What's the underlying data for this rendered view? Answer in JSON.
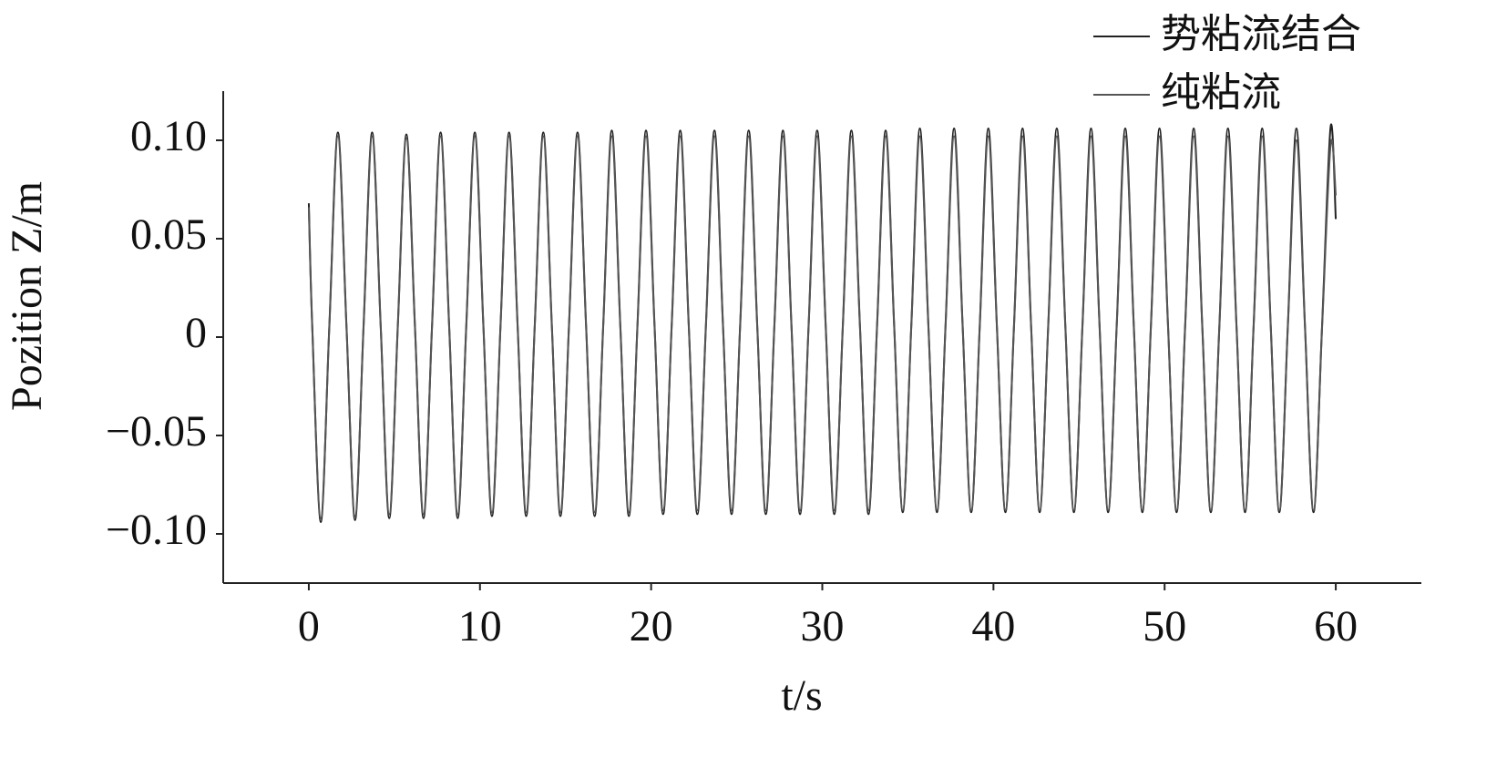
{
  "chart_data": {
    "type": "line",
    "xlabel": "t/s",
    "ylabel": "Pozition Z/m",
    "x": [
      0,
      0.2,
      0.7,
      1.2,
      1.7,
      2.2,
      2.7,
      3.2,
      3.7,
      4.2,
      4.7,
      5.2,
      5.7,
      6.2,
      6.7,
      7.2,
      7.7,
      8.2,
      8.7,
      9.2,
      9.7,
      10.2,
      10.7,
      11.2,
      11.7,
      12.2,
      12.7,
      13.2,
      13.7,
      14.2,
      14.7,
      15.2,
      15.7,
      16.2,
      16.7,
      17.2,
      17.7,
      18.2,
      18.7,
      19.2,
      19.7,
      20.2,
      20.7,
      21.2,
      21.7,
      22.2,
      22.7,
      23.2,
      23.7,
      24.2,
      24.7,
      25.2,
      25.7,
      26.2,
      26.7,
      27.2,
      27.7,
      28.2,
      28.7,
      29.2,
      29.7,
      30.2,
      30.7,
      31.2,
      31.7,
      32.2,
      32.7,
      33.2,
      33.7,
      34.2,
      34.7,
      35.2,
      35.7,
      36.2,
      36.7,
      37.2,
      37.7,
      38.2,
      38.7,
      39.2,
      39.7,
      40.2,
      40.7,
      41.2,
      41.7,
      42.2,
      42.7,
      43.2,
      43.7,
      44.2,
      44.7,
      45.2,
      45.7,
      46.2,
      46.7,
      47.2,
      47.7,
      48.2,
      48.7,
      49.2,
      49.7,
      50.2,
      50.7,
      51.2,
      51.7,
      52.2,
      52.7,
      53.2,
      53.7,
      54.2,
      54.7,
      55.2,
      55.7,
      56.2,
      56.7,
      57.2,
      57.7,
      58.2,
      58.7,
      59.2,
      59.7,
      60
    ],
    "series": [
      {
        "name": "势粘流结合",
        "color": "#222222",
        "values": [
          0.068,
          0.006,
          -0.094,
          0.006,
          0.104,
          0.006,
          -0.093,
          0.006,
          0.104,
          0.006,
          -0.092,
          0.006,
          0.103,
          0.006,
          -0.092,
          0.006,
          0.104,
          0.006,
          -0.092,
          0.006,
          0.104,
          0.006,
          -0.091,
          0.006,
          0.104,
          0.006,
          -0.091,
          0.006,
          0.104,
          0.006,
          -0.091,
          0.006,
          0.104,
          0.006,
          -0.091,
          0.006,
          0.105,
          0.006,
          -0.091,
          0.006,
          0.105,
          0.006,
          -0.09,
          0.006,
          0.105,
          0.006,
          -0.09,
          0.006,
          0.105,
          0.006,
          -0.09,
          0.006,
          0.105,
          0.006,
          -0.09,
          0.006,
          0.105,
          0.006,
          -0.09,
          0.006,
          0.105,
          0.006,
          -0.09,
          0.006,
          0.105,
          0.006,
          -0.09,
          0.006,
          0.105,
          0.006,
          -0.089,
          0.006,
          0.106,
          0.006,
          -0.089,
          0.006,
          0.106,
          0.006,
          -0.089,
          0.006,
          0.106,
          0.006,
          -0.089,
          0.006,
          0.106,
          0.006,
          -0.089,
          0.006,
          0.106,
          0.006,
          -0.089,
          0.006,
          0.106,
          0.006,
          -0.089,
          0.006,
          0.106,
          0.006,
          -0.089,
          0.006,
          0.106,
          0.006,
          -0.089,
          0.006,
          0.106,
          0.006,
          -0.089,
          0.006,
          0.106,
          0.006,
          -0.089,
          0.006,
          0.106,
          0.006,
          -0.089,
          0.006,
          0.106,
          0.006,
          -0.089,
          0.006,
          0.107,
          0.06
        ]
      },
      {
        "name": "纯粘流",
        "color": "#555555",
        "values": [
          0.066,
          0.005,
          -0.092,
          0.005,
          0.102,
          0.005,
          -0.091,
          0.005,
          0.102,
          0.005,
          -0.09,
          0.005,
          0.101,
          0.005,
          -0.09,
          0.005,
          0.102,
          0.005,
          -0.09,
          0.005,
          0.102,
          0.005,
          -0.089,
          0.005,
          0.102,
          0.005,
          -0.089,
          0.005,
          0.102,
          0.005,
          -0.089,
          0.005,
          0.102,
          0.005,
          -0.089,
          0.005,
          0.102,
          0.005,
          -0.089,
          0.005,
          0.102,
          0.005,
          -0.088,
          0.005,
          0.102,
          0.005,
          -0.088,
          0.005,
          0.102,
          0.005,
          -0.088,
          0.005,
          0.102,
          0.005,
          -0.088,
          0.005,
          0.102,
          0.005,
          -0.088,
          0.005,
          0.102,
          0.005,
          -0.088,
          0.005,
          0.102,
          0.005,
          -0.088,
          0.005,
          0.102,
          0.005,
          -0.088,
          0.005,
          0.102,
          0.005,
          -0.088,
          0.005,
          0.102,
          0.005,
          -0.088,
          0.005,
          0.102,
          0.005,
          -0.088,
          0.005,
          0.102,
          0.005,
          -0.088,
          0.005,
          0.102,
          0.005,
          -0.088,
          0.005,
          0.102,
          0.005,
          -0.088,
          0.005,
          0.102,
          0.005,
          -0.088,
          0.005,
          0.102,
          0.005,
          -0.088,
          0.005,
          0.102,
          0.005,
          -0.088,
          0.005,
          0.102,
          0.005,
          -0.088,
          0.005,
          0.102,
          0.005,
          -0.088,
          0.005,
          0.1,
          0.005,
          -0.088,
          0.005,
          0.098,
          0.072
        ]
      }
    ],
    "xlim": [
      -5,
      65
    ],
    "ylim": [
      -0.125,
      0.125
    ],
    "xticks": [
      0,
      10,
      20,
      30,
      40,
      50,
      60
    ],
    "yticks": [
      {
        "value": -0.1,
        "label": "−0.10"
      },
      {
        "value": -0.05,
        "label": "−0.05"
      },
      0,
      0.05,
      {
        "value": 0.1,
        "label": "0.10"
      }
    ],
    "legend": "top-right"
  }
}
